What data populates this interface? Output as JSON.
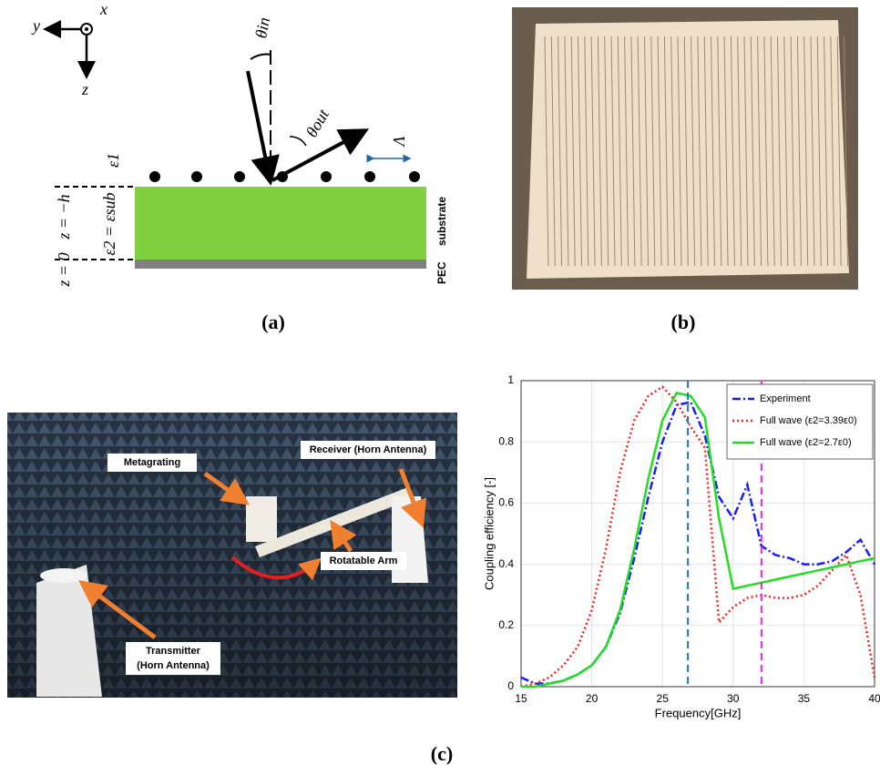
{
  "diagram": {
    "axis_y": "y",
    "axis_x": "x",
    "axis_z": "z",
    "theta_in": "θin",
    "theta_out": "θout",
    "period": "Λ",
    "eps1": "ε1",
    "z_top": "z = −h",
    "eps2": "ε2 = εsub",
    "z_bottom": "z = 0",
    "pec": "PEC",
    "substrate": "substrate"
  },
  "panel_labels": {
    "a": "(a)",
    "b": "(b)",
    "c": "(c)"
  },
  "photo_labels": {
    "metagrating": "Metagrating",
    "receiver": "Receiver (Horn Antenna)",
    "arm": "Rotatable Arm",
    "transmitter_1": "Transmitter",
    "transmitter_2": "(Horn Antenna)"
  },
  "chart_data": {
    "type": "line",
    "x_label": "Frequency[GHz]",
    "y_label": "Coupling efficiency [-]",
    "x": [
      15,
      16,
      17,
      18,
      19,
      20,
      21,
      22,
      23,
      24,
      25,
      26,
      27,
      28,
      29,
      30,
      31,
      32,
      33,
      34,
      35,
      36,
      37,
      38,
      39,
      40
    ],
    "series": [
      {
        "name": "Experiment",
        "color": "#1a1aff",
        "dash": "9 3 2 3",
        "values": [
          0.03,
          0.01,
          0.01,
          0.02,
          0.04,
          0.07,
          0.13,
          0.24,
          0.42,
          0.62,
          0.8,
          0.92,
          0.93,
          0.82,
          0.62,
          0.55,
          0.66,
          0.46,
          0.43,
          0.42,
          0.4,
          0.4,
          0.41,
          0.44,
          0.48,
          0.4
        ]
      },
      {
        "name": "Full wave (ε2=3.39ε0)",
        "color": "#ff2020",
        "dash": "2 3",
        "values": [
          0,
          0.01,
          0.03,
          0.07,
          0.13,
          0.25,
          0.45,
          0.7,
          0.87,
          0.95,
          0.98,
          0.93,
          0.85,
          0.78,
          0.21,
          0.26,
          0.29,
          0.3,
          0.29,
          0.29,
          0.3,
          0.33,
          0.38,
          0.43,
          0.3,
          0.03
        ]
      },
      {
        "name": "Full wave (ε2=2.7ε0)",
        "color": "#22dd22",
        "dash": "",
        "values": [
          0,
          0,
          0.01,
          0.02,
          0.04,
          0.07,
          0.13,
          0.25,
          0.45,
          0.68,
          0.87,
          0.96,
          0.95,
          0.88,
          0.55,
          0.32,
          0.33,
          0.34,
          0.35,
          0.36,
          0.37,
          0.38,
          0.39,
          0.4,
          0.41,
          0.42
        ]
      }
    ],
    "vlines": [
      {
        "x": 26.8,
        "color": "#1f77b4"
      },
      {
        "x": 32,
        "color": "#ee22ee"
      }
    ],
    "xlim": [
      15,
      40
    ],
    "xticks": [
      15,
      20,
      25,
      30,
      35,
      40
    ],
    "ylim": [
      0,
      1
    ],
    "yticks": [
      0,
      0.2,
      0.4,
      0.6,
      0.8,
      1
    ],
    "grid": true,
    "legend": "upper right"
  }
}
